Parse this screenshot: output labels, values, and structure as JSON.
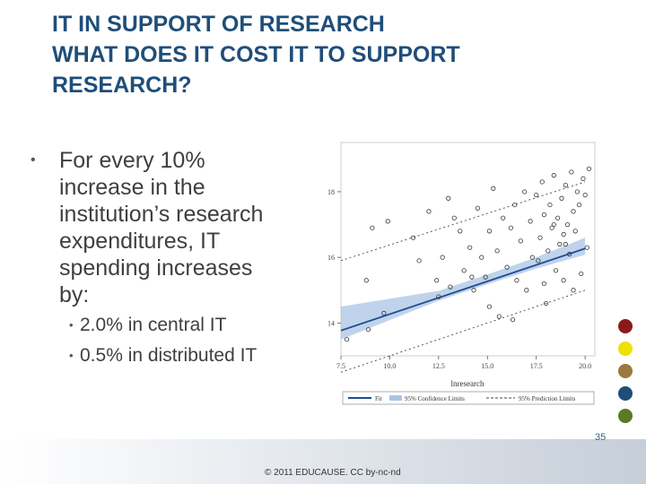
{
  "slide": {
    "title_lines": [
      "IT IN SUPPORT OF RESEARCH",
      "WHAT DOES IT COST IT TO SUPPORT",
      "RESEARCH?"
    ],
    "bullet_lines": [
      "For every 10%",
      "increase in the",
      "institution’s research",
      "expenditures, IT",
      "spending increases",
      "by:"
    ],
    "sub_bullets": [
      "2.0% in central IT",
      "0.5% in distributed IT"
    ],
    "copyright": "© 2011 EDUCAUSE. CC by-nc-nd",
    "page_number": "35",
    "bullet_symbol": "•"
  },
  "palette": {
    "title": "#1f4e79",
    "accent_circles": [
      "#8b1a1a",
      "#f0e000",
      "#9c7a3c",
      "#1f4e79",
      "#5a7a24"
    ]
  },
  "chart_data": {
    "type": "scatter",
    "xlabel": "lnresearch",
    "ylabel": "",
    "xlim": [
      7.5,
      20.5
    ],
    "ylim": [
      13,
      19.5
    ],
    "xticks": [
      "7.5",
      "10.0",
      "12.5",
      "15.0",
      "17.5",
      "20.0"
    ],
    "yticks": [
      "14",
      "16",
      "18"
    ],
    "fit": {
      "slope": 0.2,
      "intercept": 12.27
    },
    "confidence_band": [
      [
        7.5,
        13.5,
        14.5
      ],
      [
        12.5,
        14.68,
        14.98
      ],
      [
        15.0,
        15.18,
        15.48
      ],
      [
        17.5,
        15.66,
        16.0
      ],
      [
        20.0,
        16.08,
        16.6
      ]
    ],
    "prediction_lines": {
      "lower": [
        [
          7.5,
          12.5
        ],
        [
          20.0,
          15.0
        ]
      ],
      "upper": [
        [
          7.5,
          15.9
        ],
        [
          20.0,
          18.3
        ]
      ]
    },
    "points": [
      [
        7.8,
        13.5
      ],
      [
        8.9,
        13.8
      ],
      [
        8.8,
        15.3
      ],
      [
        9.7,
        14.3
      ],
      [
        9.1,
        16.9
      ],
      [
        9.9,
        17.1
      ],
      [
        11.2,
        16.6
      ],
      [
        11.5,
        15.9
      ],
      [
        12.0,
        17.4
      ],
      [
        12.4,
        15.3
      ],
      [
        12.5,
        14.8
      ],
      [
        13.0,
        17.8
      ],
      [
        13.3,
        17.2
      ],
      [
        13.6,
        16.8
      ],
      [
        13.8,
        15.6
      ],
      [
        14.1,
        16.3
      ],
      [
        14.3,
        15.0
      ],
      [
        14.5,
        17.5
      ],
      [
        14.7,
        16.0
      ],
      [
        14.9,
        15.4
      ],
      [
        15.1,
        16.8
      ],
      [
        15.3,
        18.1
      ],
      [
        15.5,
        16.2
      ],
      [
        15.6,
        14.2
      ],
      [
        15.8,
        17.2
      ],
      [
        16.0,
        15.7
      ],
      [
        16.2,
        16.9
      ],
      [
        16.4,
        17.6
      ],
      [
        16.5,
        15.3
      ],
      [
        16.7,
        16.5
      ],
      [
        16.9,
        18.0
      ],
      [
        17.0,
        15.0
      ],
      [
        17.2,
        17.1
      ],
      [
        17.3,
        16.0
      ],
      [
        17.5,
        17.9
      ],
      [
        17.6,
        15.9
      ],
      [
        17.7,
        16.6
      ],
      [
        17.8,
        18.3
      ],
      [
        17.9,
        17.3
      ],
      [
        18.0,
        14.6
      ],
      [
        18.1,
        16.2
      ],
      [
        18.2,
        17.6
      ],
      [
        18.3,
        16.9
      ],
      [
        18.4,
        18.5
      ],
      [
        18.5,
        15.6
      ],
      [
        18.6,
        17.2
      ],
      [
        18.7,
        16.4
      ],
      [
        18.8,
        17.8
      ],
      [
        18.9,
        16.7
      ],
      [
        19.0,
        18.2
      ],
      [
        19.1,
        17.0
      ],
      [
        19.2,
        16.1
      ],
      [
        19.3,
        18.6
      ],
      [
        19.4,
        17.4
      ],
      [
        19.5,
        16.8
      ],
      [
        19.6,
        18.0
      ],
      [
        19.7,
        17.6
      ],
      [
        19.8,
        15.5
      ],
      [
        19.9,
        18.4
      ],
      [
        20.0,
        17.9
      ],
      [
        20.1,
        16.3
      ],
      [
        20.2,
        18.7
      ],
      [
        19.4,
        15.0
      ],
      [
        18.9,
        15.3
      ],
      [
        17.9,
        15.2
      ],
      [
        16.3,
        14.1
      ],
      [
        15.1,
        14.5
      ],
      [
        14.2,
        15.4
      ],
      [
        13.1,
        15.1
      ],
      [
        12.7,
        16.0
      ],
      [
        19.0,
        16.4
      ],
      [
        18.4,
        17.0
      ]
    ],
    "legend": [
      {
        "label": "Fit",
        "style": "solid"
      },
      {
        "label": "95% Confidence Limits",
        "style": "band"
      },
      {
        "label": "95% Prediction Limits",
        "style": "dashed"
      }
    ],
    "colors": {
      "fit": "#1f4e8f",
      "band": "#a9c4e6",
      "points": "#333333",
      "prediction": "#444444"
    }
  }
}
